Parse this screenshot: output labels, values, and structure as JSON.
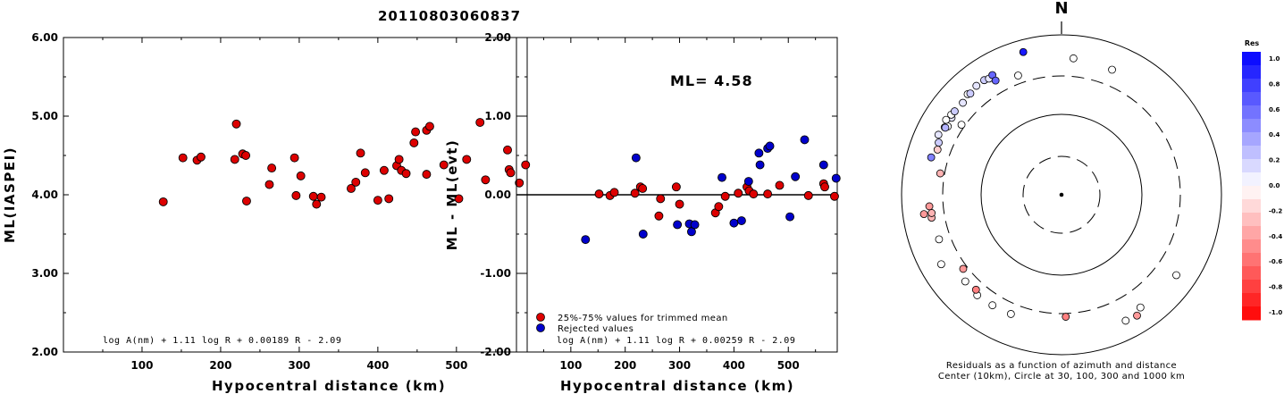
{
  "figure_title": "20110803060837",
  "chart_data": [
    {
      "type": "scatter",
      "xlabel": "Hypocentral distance (km)",
      "ylabel": "ML(IASPEI)",
      "xlim": [
        0,
        590
      ],
      "ylim": [
        2.0,
        6.0
      ],
      "x_ticks": [
        "100",
        "200",
        "300",
        "400",
        "500"
      ],
      "y_ticks": [
        "2.00",
        "3.00",
        "4.00",
        "5.00",
        "6.00"
      ],
      "annotation": "log A(nm) + 1.11 log R + 0.00189 R - 2.09",
      "series": [
        {
          "color": "#dd0000",
          "points": [
            [
              127,
              3.91
            ],
            [
              152,
              4.47
            ],
            [
              170,
              4.44
            ],
            [
              175,
              4.48
            ],
            [
              218,
              4.45
            ],
            [
              220,
              4.9
            ],
            [
              228,
              4.52
            ],
            [
              232,
              4.5
            ],
            [
              233,
              3.92
            ],
            [
              262,
              4.13
            ],
            [
              265,
              4.34
            ],
            [
              294,
              4.47
            ],
            [
              296,
              3.99
            ],
            [
              302,
              4.24
            ],
            [
              318,
              3.98
            ],
            [
              322,
              3.88
            ],
            [
              328,
              3.97
            ],
            [
              366,
              4.08
            ],
            [
              372,
              4.16
            ],
            [
              378,
              4.53
            ],
            [
              384,
              4.28
            ],
            [
              400,
              3.93
            ],
            [
              408,
              4.31
            ],
            [
              414,
              3.95
            ],
            [
              424,
              4.37
            ],
            [
              427,
              4.45
            ],
            [
              430,
              4.31
            ],
            [
              436,
              4.27
            ],
            [
              446,
              4.66
            ],
            [
              448,
              4.8
            ],
            [
              462,
              4.82
            ],
            [
              466,
              4.87
            ],
            [
              462,
              4.26
            ],
            [
              484,
              4.38
            ],
            [
              503,
              3.95
            ],
            [
              513,
              4.45
            ],
            [
              530,
              4.92
            ],
            [
              537,
              4.19
            ],
            [
              565,
              4.57
            ],
            [
              567,
              4.32
            ],
            [
              569,
              4.28
            ],
            [
              580,
              4.15
            ],
            [
              588,
              4.38
            ]
          ]
        }
      ]
    },
    {
      "type": "scatter",
      "xlabel": "Hypocentral distance (km)",
      "ylabel": "ML - ML(evt)",
      "xlim": [
        0,
        590
      ],
      "ylim": [
        -2.0,
        2.0
      ],
      "x_ticks": [
        "100",
        "200",
        "300",
        "400",
        "500"
      ],
      "y_ticks": [
        "-2.00",
        "-1.00",
        "0.00",
        "1.00",
        "2.00"
      ],
      "reference_line": 0.0,
      "ml_label": "ML= 4.58",
      "annotation": "log A(nm) + 1.11 log R + 0.00259 R - 2.09",
      "legend": [
        {
          "label": "25%-75% values for trimmed mean",
          "color": "#dd0000"
        },
        {
          "label": "Rejected values",
          "color": "#0000cc"
        }
      ],
      "series": [
        {
          "color": "#dd0000",
          "points": [
            [
              152,
              0.01
            ],
            [
              172,
              -0.01
            ],
            [
              180,
              0.03
            ],
            [
              218,
              0.02
            ],
            [
              228,
              0.1
            ],
            [
              232,
              0.08
            ],
            [
              262,
              -0.27
            ],
            [
              265,
              -0.05
            ],
            [
              294,
              0.1
            ],
            [
              300,
              -0.12
            ],
            [
              366,
              -0.23
            ],
            [
              372,
              -0.15
            ],
            [
              384,
              -0.02
            ],
            [
              408,
              0.02
            ],
            [
              424,
              0.1
            ],
            [
              428,
              0.05
            ],
            [
              436,
              0.01
            ],
            [
              462,
              0.01
            ],
            [
              484,
              0.12
            ],
            [
              537,
              -0.01
            ],
            [
              565,
              0.14
            ],
            [
              567,
              0.1
            ],
            [
              585,
              -0.02
            ]
          ]
        },
        {
          "color": "#0000cc",
          "points": [
            [
              127,
              -0.57
            ],
            [
              220,
              0.47
            ],
            [
              233,
              -0.5
            ],
            [
              296,
              -0.38
            ],
            [
              318,
              -0.37
            ],
            [
              322,
              -0.47
            ],
            [
              328,
              -0.38
            ],
            [
              378,
              0.22
            ],
            [
              400,
              -0.36
            ],
            [
              414,
              -0.33
            ],
            [
              427,
              0.17
            ],
            [
              446,
              0.53
            ],
            [
              448,
              0.38
            ],
            [
              462,
              0.59
            ],
            [
              466,
              0.62
            ],
            [
              503,
              -0.28
            ],
            [
              513,
              0.23
            ],
            [
              530,
              0.7
            ],
            [
              565,
              0.38
            ],
            [
              588,
              0.21
            ]
          ]
        }
      ]
    },
    {
      "type": "scatter",
      "subtype": "polar-residuals",
      "north_label": "N",
      "caption_line1": "Residuals as a function of azimuth and distance",
      "caption_line2": "Center (10km), Circle at 30, 100, 300 and 1000 km",
      "colorbar_title": "Res",
      "colorbar_ticks": [
        "1.0",
        "0.8",
        "0.6",
        "0.4",
        "0.2",
        "0.0",
        "-0.2",
        "-0.4",
        "-0.6",
        "-0.8",
        "-1.0"
      ],
      "rings_km": [
        30,
        100,
        300,
        1000
      ],
      "stations": [
        {
          "az": 5,
          "dist_km": 510,
          "res": 0.0
        },
        {
          "az": 22,
          "dist_km": 480,
          "res": 0.0
        },
        {
          "az": 125,
          "dist_km": 560,
          "res": 0.0
        },
        {
          "az": 145,
          "dist_km": 520,
          "res": 0.0
        },
        {
          "az": 148,
          "dist_km": 600,
          "res": -0.4
        },
        {
          "az": 153,
          "dist_km": 580,
          "res": 0.0
        },
        {
          "az": 178,
          "dist_km": 330,
          "res": -0.5
        },
        {
          "az": 203,
          "dist_km": 410,
          "res": 0.0
        },
        {
          "az": 212,
          "dist_km": 420,
          "res": 0.0
        },
        {
          "az": 220,
          "dist_km": 430,
          "res": 0.0
        },
        {
          "az": 222,
          "dist_km": 390,
          "res": -0.5
        },
        {
          "az": 228,
          "dist_km": 410,
          "res": 0.0
        },
        {
          "az": 233,
          "dist_km": 340,
          "res": -0.4
        },
        {
          "az": 240,
          "dist_km": 540,
          "res": 0.0
        },
        {
          "az": 250,
          "dist_km": 420,
          "res": 0.0
        },
        {
          "az": 260,
          "dist_km": 440,
          "res": -0.3
        },
        {
          "az": 262,
          "dist_km": 430,
          "res": -0.3
        },
        {
          "az": 265,
          "dist_km": 450,
          "res": -0.4
        },
        {
          "az": 262,
          "dist_km": 540,
          "res": -0.4
        },
        {
          "az": 286,
          "dist_km": 490,
          "res": 0.5
        },
        {
          "az": 290,
          "dist_km": 440,
          "res": -0.2
        },
        {
          "az": 293,
          "dist_km": 460,
          "res": 0.2
        },
        {
          "az": 296,
          "dist_km": 510,
          "res": 0.1
        },
        {
          "az": 300,
          "dist_km": 480,
          "res": 0.0
        },
        {
          "az": 301,
          "dist_km": 450,
          "res": 0.0
        },
        {
          "az": 300,
          "dist_km": 470,
          "res": 0.3
        },
        {
          "az": 305,
          "dist_km": 470,
          "res": 0.1
        },
        {
          "az": 303,
          "dist_km": 520,
          "res": 0.0
        },
        {
          "az": 306,
          "dist_km": 500,
          "res": 0.0
        },
        {
          "az": 308,
          "dist_km": 490,
          "res": 0.2
        },
        {
          "az": 313,
          "dist_km": 480,
          "res": 0.1
        },
        {
          "az": 317,
          "dist_km": 520,
          "res": 0.0
        },
        {
          "az": 318,
          "dist_km": 500,
          "res": 0.2
        },
        {
          "az": 322,
          "dist_km": 530,
          "res": 0.1
        },
        {
          "az": 326,
          "dist_km": 530,
          "res": 0.2
        },
        {
          "az": 328,
          "dist_km": 510,
          "res": 0.1
        },
        {
          "az": 330,
          "dist_km": 530,
          "res": 0.6
        },
        {
          "az": 330,
          "dist_km": 440,
          "res": 0.6
        },
        {
          "az": 340,
          "dist_km": 380,
          "res": 0.0
        },
        {
          "az": 305,
          "dist_km": 330,
          "res": 0.0
        },
        {
          "az": 280,
          "dist_km": 340,
          "res": -0.3
        },
        {
          "az": 345,
          "dist_km": 700,
          "res": 0.9
        }
      ]
    }
  ]
}
